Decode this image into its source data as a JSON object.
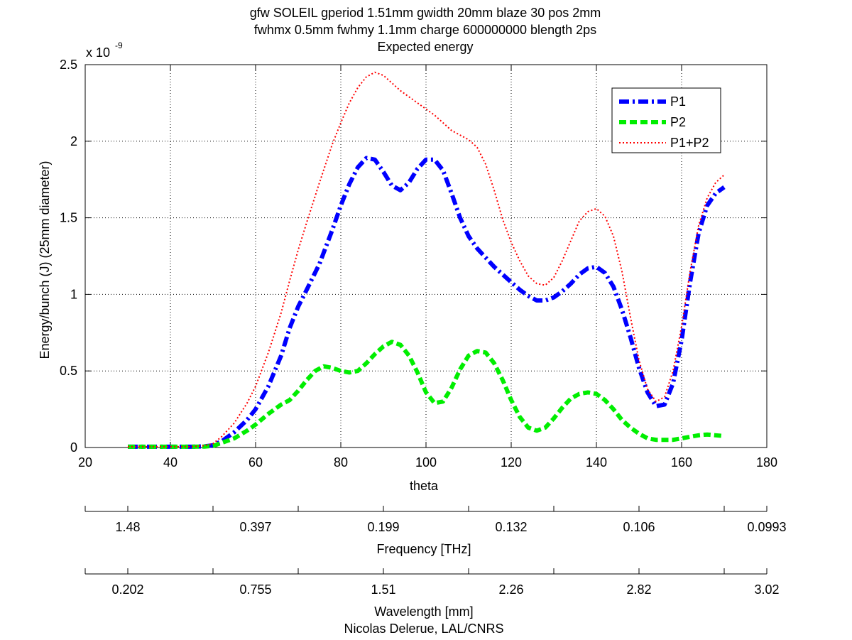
{
  "figure": {
    "title_lines": [
      "gfw SOLEIL gperiod 1.51mm gwidth 20mm blaze 30 pos 2mm",
      "fwhmx 0.5mm fwhmy 1.1mm charge 600000000 blength 2ps",
      "Expected energy"
    ],
    "y_multiplier_base": "x 10",
    "y_multiplier_exp": "-9",
    "credit": "Nicolas Delerue, LAL/CNRS"
  },
  "chart_data": {
    "type": "line",
    "title": "Expected energy",
    "xlabel": "theta",
    "ylabel": "Energy/bunch (J) (25mm diameter)",
    "xlim": [
      20,
      180
    ],
    "ylim": [
      0,
      2.5
    ],
    "y_scale_note": "x 10^-9",
    "x_ticks": [
      "20",
      "40",
      "60",
      "80",
      "100",
      "120",
      "140",
      "160",
      "180"
    ],
    "y_ticks": [
      "0",
      "0.5",
      "1",
      "1.5",
      "2",
      "2.5"
    ],
    "grid": true,
    "legend_position": "top-right",
    "secondary_axes": [
      {
        "label": "Frequency [THz]",
        "tick_theta": [
          30,
          50,
          70,
          90,
          110,
          130,
          150,
          170
        ],
        "tick_labels": [
          "1.48",
          "0.397",
          "0.199",
          "0.132",
          "0.106",
          "0.0993"
        ],
        "label_theta": [
          30,
          60,
          90,
          120,
          150,
          180
        ]
      },
      {
        "label": "Wavelength [mm]",
        "tick_theta": [
          30,
          50,
          70,
          90,
          110,
          130,
          150,
          170
        ],
        "tick_labels": [
          "0.202",
          "0.755",
          "1.51",
          "2.26",
          "2.82",
          "3.02"
        ],
        "label_theta": [
          30,
          60,
          90,
          120,
          150,
          180
        ]
      }
    ],
    "series": [
      {
        "name": "P1",
        "color": "#0000ff",
        "style": "dash-dot",
        "x": [
          30,
          35,
          40,
          45,
          48,
          50,
          52,
          55,
          58,
          60,
          63,
          66,
          68,
          70,
          72,
          75,
          78,
          80,
          82,
          84,
          86,
          88,
          90,
          92,
          94,
          96,
          98,
          100,
          102,
          104,
          106,
          108,
          110,
          112,
          114,
          116,
          118,
          120,
          122,
          124,
          126,
          128,
          130,
          132,
          134,
          136,
          138,
          140,
          142,
          144,
          146,
          148,
          150,
          152,
          154,
          156,
          158,
          160,
          162,
          164,
          166,
          168,
          170
        ],
        "y": [
          0.005,
          0.005,
          0.005,
          0.005,
          0.008,
          0.015,
          0.04,
          0.1,
          0.18,
          0.25,
          0.4,
          0.6,
          0.78,
          0.92,
          1.03,
          1.2,
          1.42,
          1.58,
          1.72,
          1.83,
          1.89,
          1.88,
          1.8,
          1.71,
          1.68,
          1.73,
          1.82,
          1.88,
          1.88,
          1.81,
          1.66,
          1.5,
          1.38,
          1.3,
          1.24,
          1.18,
          1.13,
          1.08,
          1.03,
          0.99,
          0.96,
          0.96,
          0.98,
          1.02,
          1.07,
          1.13,
          1.17,
          1.18,
          1.14,
          1.05,
          0.9,
          0.72,
          0.52,
          0.36,
          0.27,
          0.28,
          0.42,
          0.7,
          1.08,
          1.4,
          1.58,
          1.66,
          1.7
        ]
      },
      {
        "name": "P2",
        "color": "#00ee00",
        "style": "dashed",
        "x": [
          30,
          35,
          40,
          45,
          48,
          50,
          52,
          55,
          58,
          60,
          63,
          66,
          68,
          70,
          72,
          74,
          76,
          78,
          80,
          82,
          84,
          86,
          88,
          90,
          92,
          94,
          96,
          98,
          100,
          102,
          104,
          106,
          108,
          110,
          112,
          114,
          116,
          118,
          120,
          122,
          124,
          126,
          128,
          130,
          132,
          134,
          136,
          138,
          140,
          142,
          144,
          146,
          148,
          150,
          152,
          154,
          156,
          158,
          160,
          162,
          164,
          166,
          168,
          170
        ],
        "y": [
          0.005,
          0.005,
          0.005,
          0.005,
          0.006,
          0.01,
          0.03,
          0.06,
          0.11,
          0.15,
          0.22,
          0.28,
          0.31,
          0.37,
          0.44,
          0.5,
          0.53,
          0.52,
          0.5,
          0.49,
          0.5,
          0.55,
          0.61,
          0.66,
          0.69,
          0.67,
          0.6,
          0.49,
          0.36,
          0.29,
          0.3,
          0.39,
          0.51,
          0.6,
          0.63,
          0.62,
          0.55,
          0.44,
          0.31,
          0.2,
          0.13,
          0.11,
          0.13,
          0.19,
          0.26,
          0.32,
          0.35,
          0.36,
          0.35,
          0.31,
          0.25,
          0.18,
          0.13,
          0.09,
          0.06,
          0.05,
          0.05,
          0.05,
          0.06,
          0.07,
          0.08,
          0.085,
          0.08,
          0.075
        ]
      },
      {
        "name": "P1+P2",
        "color": "#ff0000",
        "style": "dotted",
        "x": [
          30,
          35,
          40,
          45,
          48,
          50,
          52,
          55,
          58,
          60,
          63,
          66,
          68,
          70,
          72,
          75,
          78,
          80,
          82,
          84,
          86,
          88,
          90,
          92,
          94,
          96,
          98,
          100,
          102,
          104,
          106,
          108,
          110,
          112,
          114,
          116,
          118,
          120,
          122,
          124,
          126,
          128,
          130,
          132,
          134,
          136,
          138,
          140,
          142,
          144,
          146,
          148,
          150,
          152,
          154,
          156,
          158,
          160,
          162,
          164,
          166,
          168,
          170
        ],
        "y": [
          0.005,
          0.005,
          0.005,
          0.005,
          0.012,
          0.025,
          0.07,
          0.16,
          0.29,
          0.4,
          0.62,
          0.88,
          1.09,
          1.29,
          1.47,
          1.73,
          1.98,
          2.12,
          2.25,
          2.35,
          2.42,
          2.45,
          2.43,
          2.38,
          2.33,
          2.29,
          2.25,
          2.21,
          2.17,
          2.12,
          2.07,
          2.04,
          2.01,
          1.96,
          1.85,
          1.68,
          1.49,
          1.34,
          1.22,
          1.12,
          1.07,
          1.06,
          1.11,
          1.22,
          1.35,
          1.48,
          1.54,
          1.56,
          1.51,
          1.38,
          1.15,
          0.85,
          0.57,
          0.38,
          0.3,
          0.33,
          0.5,
          0.79,
          1.15,
          1.45,
          1.63,
          1.73,
          1.78
        ]
      }
    ]
  }
}
